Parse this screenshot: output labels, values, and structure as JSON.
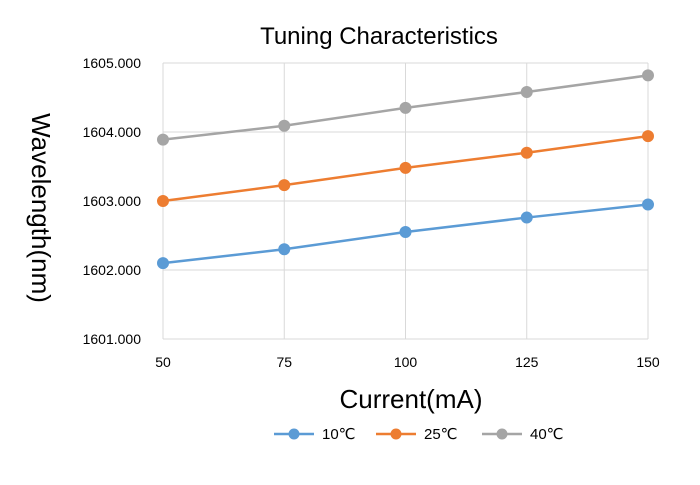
{
  "chart_data": {
    "type": "line",
    "title": "Tuning Characteristics",
    "xlabel": "Current(mA)",
    "ylabel": "Wavelength(nm)",
    "x": [
      50,
      75,
      100,
      125,
      150
    ],
    "x_tick_labels": [
      "50",
      "75",
      "100",
      "125",
      "150"
    ],
    "y_tick_labels": [
      "1601.000",
      "1602.000",
      "1603.000",
      "1604.000",
      "1605.000"
    ],
    "ylim": [
      1601.0,
      1605.0
    ],
    "xlim": [
      50,
      150
    ],
    "grid": true,
    "legend_position": "bottom",
    "series": [
      {
        "name": "10℃",
        "color": "#5B9BD5",
        "values": [
          1602.1,
          1602.3,
          1602.55,
          1602.76,
          1602.95
        ]
      },
      {
        "name": "25℃",
        "color": "#ED7D31",
        "values": [
          1603.0,
          1603.23,
          1603.48,
          1603.7,
          1603.94
        ]
      },
      {
        "name": "40℃",
        "color": "#A5A5A5",
        "values": [
          1603.89,
          1604.09,
          1604.35,
          1604.58,
          1604.82
        ]
      }
    ]
  }
}
